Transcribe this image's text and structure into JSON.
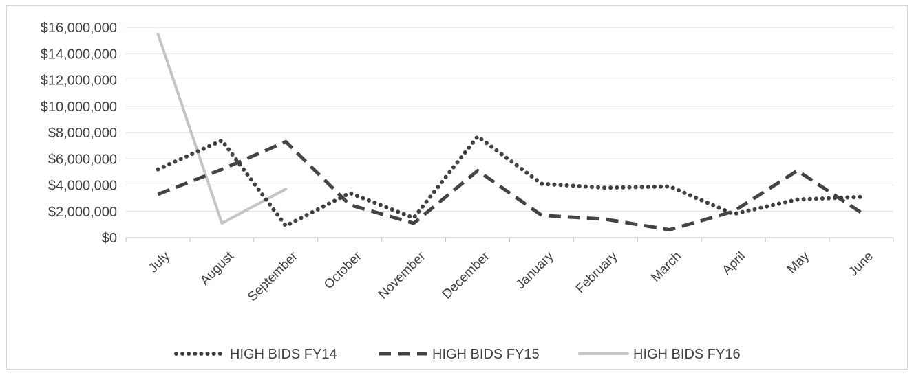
{
  "chart_data": {
    "type": "line",
    "title": "",
    "xlabel": "",
    "ylabel": "",
    "categories": [
      "July",
      "August",
      "September",
      "October",
      "November",
      "December",
      "January",
      "February",
      "March",
      "April",
      "May",
      "June"
    ],
    "y_ticks": [
      "$0",
      "$2,000,000",
      "$4,000,000",
      "$6,000,000",
      "$8,000,000",
      "$10,000,000",
      "$12,000,000",
      "$14,000,000",
      "$16,000,000"
    ],
    "ylim": [
      0,
      16000000
    ],
    "grid": true,
    "legend_position": "bottom",
    "series": [
      {
        "name": "HIGH BIDS FY14",
        "style": "dotted",
        "color": "#404040",
        "values": [
          5200000,
          7400000,
          900000,
          3400000,
          1500000,
          7700000,
          4100000,
          3800000,
          3900000,
          1800000,
          2900000,
          3100000
        ]
      },
      {
        "name": "HIGH BIDS FY15",
        "style": "dashed",
        "color": "#444444",
        "values": [
          3300000,
          5200000,
          7300000,
          2500000,
          1100000,
          5100000,
          1700000,
          1400000,
          600000,
          2000000,
          5100000,
          1900000
        ]
      },
      {
        "name": "HIGH BIDS FY16",
        "style": "solid",
        "color": "#c4c4c4",
        "values": [
          15500000,
          1100000,
          3700000,
          null,
          null,
          null,
          null,
          null,
          null,
          null,
          null,
          null
        ]
      }
    ]
  }
}
